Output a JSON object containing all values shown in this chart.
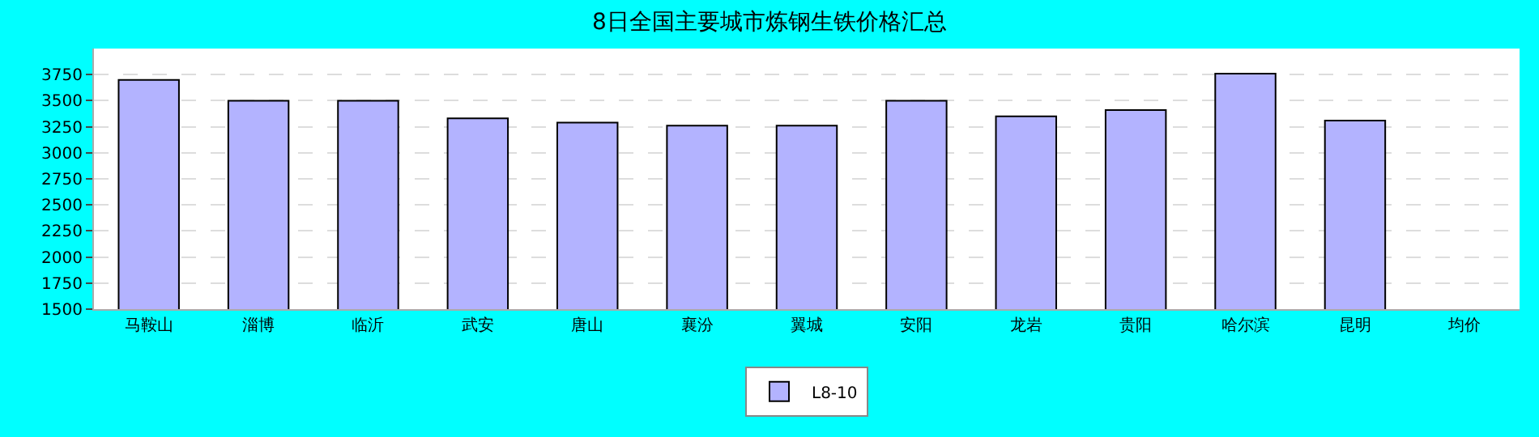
{
  "chart_data": {
    "type": "bar",
    "title": "8日全国主要城市炼钢生铁价格汇总",
    "categories": [
      "马鞍山",
      "淄博",
      "临沂",
      "武安",
      "唐山",
      "襄汾",
      "翼城",
      "安阳",
      "龙岩",
      "贵阳",
      "哈尔滨",
      "昆明",
      "均价"
    ],
    "series": [
      {
        "name": "L8-10",
        "color": "#b3b3ff",
        "values": [
          3700,
          3500,
          3500,
          3330,
          3290,
          3260,
          3260,
          3500,
          3350,
          3410,
          3760,
          3310,
          null
        ]
      }
    ],
    "ylim": [
      1500,
      4000
    ],
    "yticks": [
      1500,
      1750,
      2000,
      2250,
      2500,
      2750,
      3000,
      3250,
      3500,
      3750
    ],
    "grid": "y",
    "legend": "bottom"
  }
}
